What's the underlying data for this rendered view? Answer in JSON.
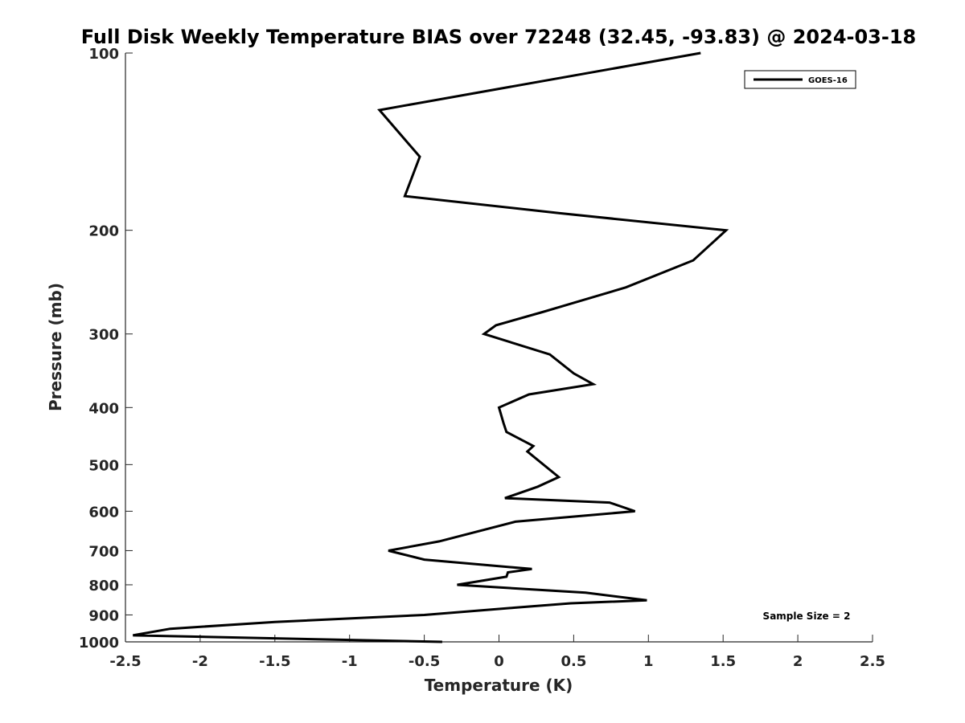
{
  "chart_data": {
    "type": "line",
    "title": "Full Disk Weekly Temperature BIAS over 72248 (32.45, -93.83) @ 2024-03-18",
    "xlabel": "Temperature (K)",
    "ylabel": "Pressure (mb)",
    "xlim": [
      -2.5,
      2.5
    ],
    "ylim": [
      100,
      1000
    ],
    "y_scale": "log",
    "y_reversed": true,
    "x_ticks": [
      -2.5,
      -2,
      -1.5,
      -1,
      -0.5,
      0,
      0.5,
      1,
      1.5,
      2,
      2.5
    ],
    "x_tick_labels": [
      "-2.5",
      "-2",
      "-1.5",
      "-1",
      "-0.5",
      "0",
      "0.5",
      "1",
      "1.5",
      "2",
      "2.5"
    ],
    "y_ticks": [
      100,
      200,
      300,
      400,
      500,
      600,
      700,
      800,
      900,
      1000
    ],
    "y_tick_labels": [
      "100",
      "200",
      "300",
      "400",
      "500",
      "600",
      "700",
      "800",
      "900",
      "1000"
    ],
    "grid": false,
    "legend_position": "top-right",
    "series": [
      {
        "name": "GOES-16",
        "color": "#000000",
        "points": [
          {
            "x": 1.35,
            "p": 100
          },
          {
            "x": -0.8,
            "p": 125
          },
          {
            "x": -0.53,
            "p": 150
          },
          {
            "x": -0.63,
            "p": 175
          },
          {
            "x": 0.4,
            "p": 187
          },
          {
            "x": 1.52,
            "p": 200
          },
          {
            "x": 1.3,
            "p": 225
          },
          {
            "x": 0.85,
            "p": 250
          },
          {
            "x": 0.3,
            "p": 275
          },
          {
            "x": -0.02,
            "p": 290
          },
          {
            "x": -0.1,
            "p": 300
          },
          {
            "x": 0.34,
            "p": 325
          },
          {
            "x": 0.5,
            "p": 350
          },
          {
            "x": 0.63,
            "p": 365
          },
          {
            "x": 0.2,
            "p": 380
          },
          {
            "x": 0.0,
            "p": 400
          },
          {
            "x": 0.03,
            "p": 425
          },
          {
            "x": 0.05,
            "p": 440
          },
          {
            "x": 0.23,
            "p": 465
          },
          {
            "x": 0.19,
            "p": 475
          },
          {
            "x": 0.4,
            "p": 525
          },
          {
            "x": 0.26,
            "p": 545
          },
          {
            "x": 0.04,
            "p": 570
          },
          {
            "x": 0.74,
            "p": 580
          },
          {
            "x": 0.91,
            "p": 600
          },
          {
            "x": 0.11,
            "p": 625
          },
          {
            "x": -0.4,
            "p": 675
          },
          {
            "x": -0.74,
            "p": 700
          },
          {
            "x": -0.5,
            "p": 725
          },
          {
            "x": 0.22,
            "p": 752
          },
          {
            "x": 0.06,
            "p": 762
          },
          {
            "x": 0.05,
            "p": 775
          },
          {
            "x": -0.28,
            "p": 800
          },
          {
            "x": 0.58,
            "p": 825
          },
          {
            "x": 0.99,
            "p": 850
          },
          {
            "x": 0.48,
            "p": 860
          },
          {
            "x": 0.1,
            "p": 875
          },
          {
            "x": -0.5,
            "p": 900
          },
          {
            "x": -1.5,
            "p": 925
          },
          {
            "x": -2.2,
            "p": 950
          },
          {
            "x": -2.45,
            "p": 975
          },
          {
            "x": -0.38,
            "p": 1000
          }
        ]
      }
    ],
    "annotation": "Sample Size = 2"
  }
}
